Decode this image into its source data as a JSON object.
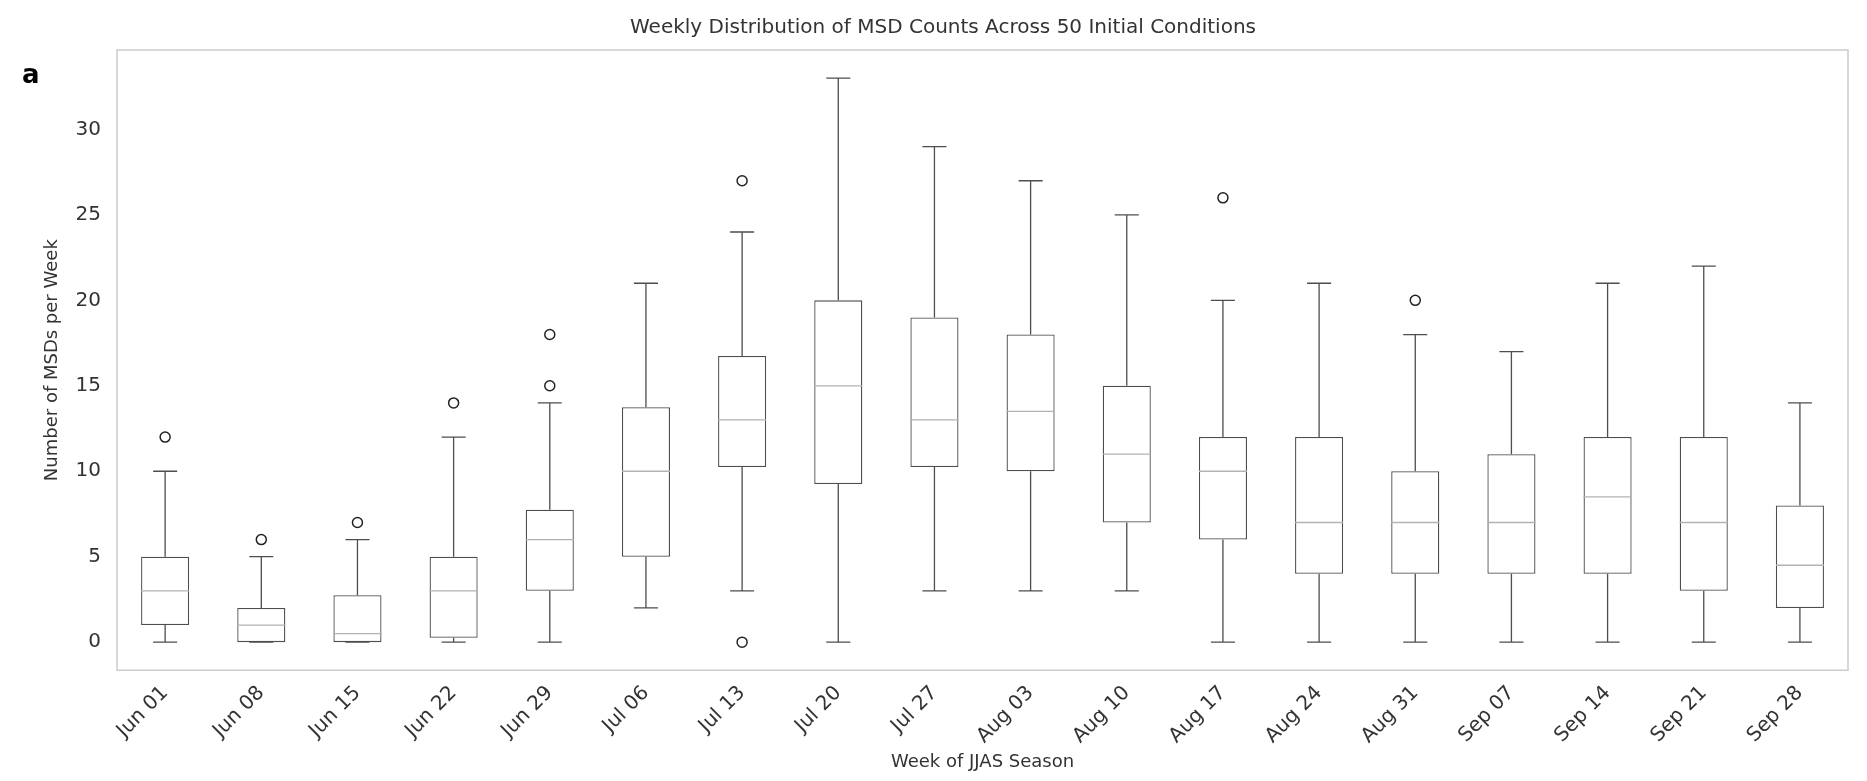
{
  "chart_data": {
    "type": "box",
    "title": "Weekly Distribution of MSD Counts Across 50 Initial Conditions",
    "xlabel": "Week of JJAS Season",
    "ylabel": "Number of MSDs per Week",
    "annotations": [
      "a"
    ],
    "categories": [
      "Jun 01",
      "Jun 08",
      "Jun 15",
      "Jun 22",
      "Jun 29",
      "Jul 06",
      "Jul 13",
      "Jul 20",
      "Jul 27",
      "Aug 03",
      "Aug 10",
      "Aug 17",
      "Aug 24",
      "Aug 31",
      "Sep 07",
      "Sep 14",
      "Sep 21",
      "Sep 28"
    ],
    "series": [
      {
        "color": "#4d4d4d",
        "boxes": [
          {
            "low": 0,
            "q1": 1,
            "median": 3,
            "q3": 5,
            "high": 10,
            "outliers": [
              12
            ]
          },
          {
            "low": 0,
            "q1": 0,
            "median": 1,
            "q3": 2,
            "high": 5,
            "outliers": [
              6
            ]
          },
          {
            "low": 0,
            "q1": 0,
            "median": 0.5,
            "q3": 2.75,
            "high": 6,
            "outliers": [
              7
            ]
          },
          {
            "low": 0,
            "q1": 0.25,
            "median": 3,
            "q3": 5,
            "high": 12,
            "outliers": [
              14
            ]
          },
          {
            "low": 0,
            "q1": 3,
            "median": 6,
            "q3": 7.75,
            "high": 14,
            "outliers": [
              15,
              18
            ]
          },
          {
            "low": 2,
            "q1": 5,
            "median": 10,
            "q3": 13.75,
            "high": 21
          },
          {
            "low": 3,
            "q1": 10.25,
            "median": 13,
            "q3": 16.75,
            "high": 24,
            "outliers": [
              0,
              27
            ]
          },
          {
            "low": 0,
            "q1": 9.25,
            "median": 15,
            "q3": 20,
            "high": 33
          },
          {
            "low": 3,
            "q1": 10.25,
            "median": 13,
            "q3": 19,
            "high": 29
          },
          {
            "low": 3,
            "q1": 10,
            "median": 13.5,
            "q3": 18,
            "high": 27
          },
          {
            "low": 3,
            "q1": 7,
            "median": 11,
            "q3": 15,
            "high": 25
          },
          {
            "low": 0,
            "q1": 6,
            "median": 10,
            "q3": 12,
            "high": 20,
            "outliers": [
              26
            ]
          },
          {
            "low": 0,
            "q1": 4,
            "median": 7,
            "q3": 12,
            "high": 21
          },
          {
            "low": 0,
            "q1": 4,
            "median": 7,
            "q3": 10,
            "high": 18,
            "outliers": [
              20
            ]
          },
          {
            "low": 0,
            "q1": 4,
            "median": 7,
            "q3": 11,
            "high": 17
          },
          {
            "low": 0,
            "q1": 4,
            "median": 8.5,
            "q3": 12,
            "high": 21
          },
          {
            "low": 0,
            "q1": 3,
            "median": 7,
            "q3": 12,
            "high": 22
          },
          {
            "low": 0,
            "q1": 2,
            "median": 4.5,
            "q3": 8,
            "high": 14
          }
        ]
      }
    ],
    "ylim": [
      -1.65,
      34.65
    ],
    "yticks": [
      0,
      5,
      10,
      15,
      20,
      25,
      30
    ],
    "grid": false,
    "legend": false
  }
}
